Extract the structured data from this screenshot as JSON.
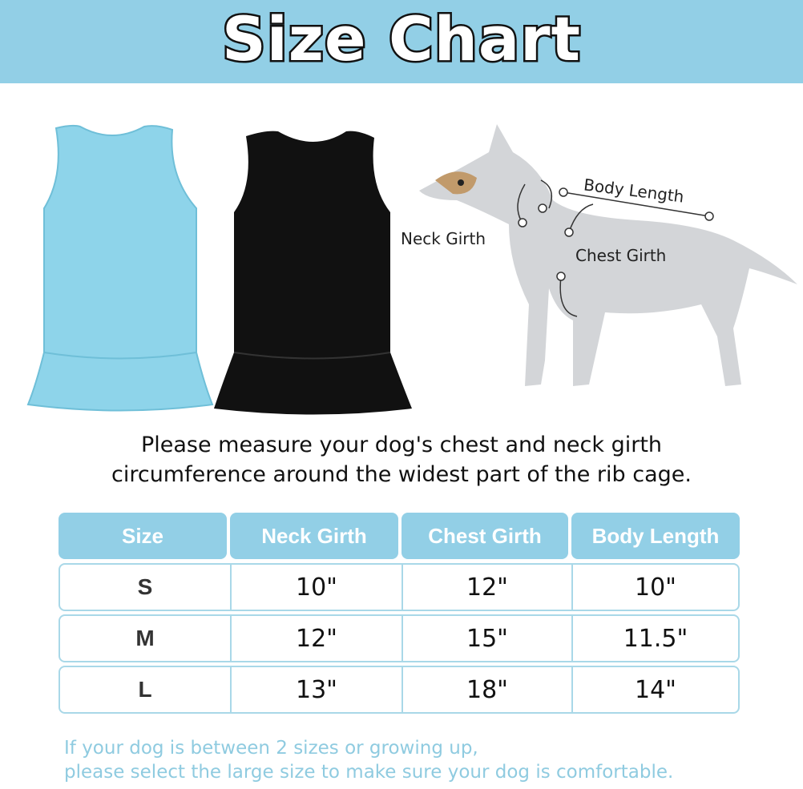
{
  "title": "Size Chart",
  "colors": {
    "header_bg": "#92cfe6",
    "dress_1": "#8ed4ea",
    "dress_2": "#111111",
    "footer_text": "#8fcbe0"
  },
  "diagram_labels": {
    "neck": "Neck  Girth",
    "body": "Body Length",
    "chest": "Chest Girth"
  },
  "instructions": [
    "Please measure your dog's chest and neck girth",
    "circumference around the widest part of the rib cage."
  ],
  "table": {
    "headers": [
      "Size",
      "Neck Girth",
      "Chest Girth",
      "Body Length"
    ],
    "rows": [
      [
        "S",
        "10\"",
        "12\"",
        "10\""
      ],
      [
        "M",
        "12\"",
        "15\"",
        "11.5\""
      ],
      [
        "L",
        "13\"",
        "18\"",
        "14\""
      ]
    ]
  },
  "footer": [
    "If your dog is between 2 sizes or growing up,",
    "please select the large size to make sure your dog is comfortable."
  ]
}
